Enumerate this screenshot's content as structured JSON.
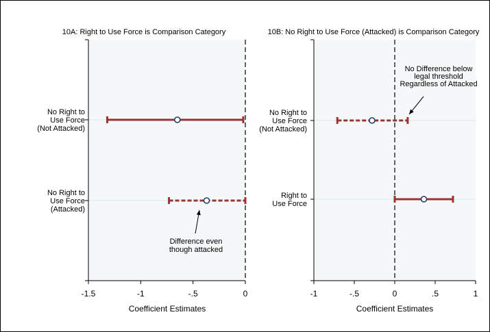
{
  "colors": {
    "background": "#ffffff",
    "plot_bg": "#f4f8f8",
    "interval": "#9b3535",
    "point_fill": "#ffffff",
    "point_stroke": "#1f3a5f",
    "frame": "#000000",
    "gridline": "#dfe6e6"
  },
  "chart_data": [
    {
      "type": "coefficient-plot",
      "title": "10A: Right to Use Force is Comparison Category",
      "xlabel": "Coefficient Estimates",
      "xlim": [
        -1.5,
        0.0
      ],
      "xticks": [
        -1.5,
        -1,
        -0.5,
        0
      ],
      "xtick_labels": [
        "-1.5",
        "-1",
        "-.5",
        "0"
      ],
      "reference_line": 0,
      "rows": [
        {
          "label_lines": [
            "No Right to",
            "Use Force",
            "(Not Attacked)"
          ],
          "estimate": -0.65,
          "ci": [
            -1.32,
            -0.02
          ],
          "line_style": "solid"
        },
        {
          "label_lines": [
            "No Right to",
            "Use Force",
            "(Attacked)"
          ],
          "estimate": -0.37,
          "ci": [
            -0.73,
            0.0
          ],
          "line_style": "dashed"
        }
      ],
      "annotations": [
        {
          "lines": [
            "Difference even",
            "though attacked"
          ],
          "points_to_row": 1
        }
      ]
    },
    {
      "type": "coefficient-plot",
      "title": "10B: No Right to Use Force (Attacked) is Comparison Category",
      "xlabel": "Coefficient Estimates",
      "xlim": [
        -1.0,
        1.0
      ],
      "xticks": [
        -1,
        -0.5,
        0,
        0.5,
        1
      ],
      "xtick_labels": [
        "-1",
        "-.5",
        "0",
        ".5",
        "1"
      ],
      "reference_line": 0,
      "rows": [
        {
          "label_lines": [
            "No Right to",
            "Use Force",
            "(Not Attacked)"
          ],
          "estimate": -0.28,
          "ci": [
            -0.71,
            0.16
          ],
          "line_style": "dashed"
        },
        {
          "label_lines": [
            "Right to",
            "Use Force"
          ],
          "estimate": 0.36,
          "ci": [
            0.0,
            0.72
          ],
          "line_style": "solid"
        }
      ],
      "annotations": [
        {
          "lines": [
            "No Difference below",
            "legal threshold",
            "Regardless of Attacked"
          ],
          "points_to_row": 0
        }
      ]
    }
  ]
}
